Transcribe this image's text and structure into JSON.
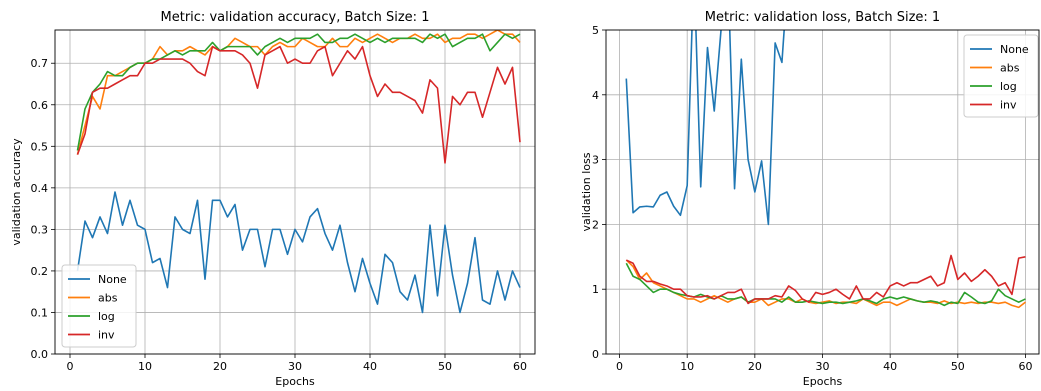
{
  "colors": {
    "None": "#1f77b4",
    "abs": "#ff7f0e",
    "log": "#2ca02c",
    "inv": "#d62728",
    "grid": "#b0b0b0"
  },
  "chart_data": [
    {
      "type": "line",
      "title": "Metric: validation accuracy, Batch Size: 1",
      "xlabel": "Epochs",
      "ylabel": "validation accuracy",
      "xlim": [
        -2,
        62
      ],
      "ylim": [
        0.0,
        0.78
      ],
      "xticks": [
        0,
        10,
        20,
        30,
        40,
        50,
        60
      ],
      "yticks": [
        0.0,
        0.1,
        0.2,
        0.3,
        0.4,
        0.5,
        0.6,
        0.7
      ],
      "ytick_format": 1,
      "grid": true,
      "legend": "bottom-left",
      "x": [
        1,
        2,
        3,
        4,
        5,
        6,
        7,
        8,
        9,
        10,
        11,
        12,
        13,
        14,
        15,
        16,
        17,
        18,
        19,
        20,
        21,
        22,
        23,
        24,
        25,
        26,
        27,
        28,
        29,
        30,
        31,
        32,
        33,
        34,
        35,
        36,
        37,
        38,
        39,
        40,
        41,
        42,
        43,
        44,
        45,
        46,
        47,
        48,
        49,
        50,
        51,
        52,
        53,
        54,
        55,
        56,
        57,
        58,
        59,
        60
      ],
      "series": [
        {
          "name": "None",
          "color_key": "None",
          "values": [
            0.2,
            0.32,
            0.28,
            0.33,
            0.29,
            0.39,
            0.31,
            0.37,
            0.31,
            0.3,
            0.22,
            0.23,
            0.16,
            0.33,
            0.3,
            0.29,
            0.37,
            0.18,
            0.37,
            0.37,
            0.33,
            0.36,
            0.25,
            0.3,
            0.3,
            0.21,
            0.3,
            0.3,
            0.24,
            0.3,
            0.27,
            0.33,
            0.35,
            0.29,
            0.25,
            0.31,
            0.22,
            0.15,
            0.23,
            0.17,
            0.12,
            0.24,
            0.22,
            0.15,
            0.13,
            0.19,
            0.1,
            0.31,
            0.14,
            0.31,
            0.19,
            0.1,
            0.17,
            0.28,
            0.13,
            0.12,
            0.2,
            0.13,
            0.2,
            0.16
          ]
        },
        {
          "name": "abs",
          "color_key": "abs",
          "values": [
            0.48,
            0.55,
            0.62,
            0.59,
            0.67,
            0.67,
            0.68,
            0.69,
            0.7,
            0.7,
            0.71,
            0.74,
            0.72,
            0.73,
            0.73,
            0.74,
            0.73,
            0.72,
            0.74,
            0.73,
            0.74,
            0.76,
            0.75,
            0.74,
            0.74,
            0.72,
            0.74,
            0.75,
            0.74,
            0.74,
            0.76,
            0.75,
            0.74,
            0.74,
            0.76,
            0.74,
            0.74,
            0.76,
            0.75,
            0.76,
            0.77,
            0.76,
            0.75,
            0.76,
            0.76,
            0.77,
            0.76,
            0.76,
            0.77,
            0.75,
            0.76,
            0.76,
            0.77,
            0.77,
            0.76,
            0.77,
            0.78,
            0.77,
            0.77,
            0.75
          ]
        },
        {
          "name": "log",
          "color_key": "log",
          "values": [
            0.49,
            0.59,
            0.63,
            0.65,
            0.68,
            0.67,
            0.67,
            0.69,
            0.7,
            0.7,
            0.71,
            0.71,
            0.72,
            0.73,
            0.72,
            0.73,
            0.73,
            0.73,
            0.75,
            0.73,
            0.74,
            0.74,
            0.74,
            0.74,
            0.72,
            0.74,
            0.75,
            0.76,
            0.75,
            0.76,
            0.76,
            0.76,
            0.77,
            0.75,
            0.75,
            0.76,
            0.76,
            0.77,
            0.76,
            0.75,
            0.76,
            0.75,
            0.76,
            0.76,
            0.76,
            0.76,
            0.75,
            0.77,
            0.76,
            0.77,
            0.74,
            0.75,
            0.76,
            0.76,
            0.77,
            0.73,
            0.75,
            0.77,
            0.76,
            0.77
          ]
        },
        {
          "name": "inv",
          "color_key": "inv",
          "values": [
            0.48,
            0.53,
            0.63,
            0.64,
            0.64,
            0.65,
            0.66,
            0.67,
            0.67,
            0.7,
            0.7,
            0.71,
            0.71,
            0.71,
            0.71,
            0.7,
            0.68,
            0.67,
            0.74,
            0.73,
            0.73,
            0.73,
            0.72,
            0.7,
            0.64,
            0.72,
            0.73,
            0.74,
            0.7,
            0.71,
            0.7,
            0.7,
            0.73,
            0.74,
            0.67,
            0.7,
            0.73,
            0.71,
            0.74,
            0.67,
            0.62,
            0.65,
            0.63,
            0.63,
            0.62,
            0.61,
            0.58,
            0.66,
            0.64,
            0.46,
            0.62,
            0.6,
            0.63,
            0.63,
            0.57,
            0.63,
            0.69,
            0.65,
            0.69,
            0.51
          ]
        }
      ]
    },
    {
      "type": "line",
      "title": "Metric: validation loss, Batch Size: 1",
      "xlabel": "Epochs",
      "ylabel": "validation loss",
      "xlim": [
        -2,
        62
      ],
      "ylim": [
        0,
        5
      ],
      "xticks": [
        0,
        10,
        20,
        30,
        40,
        50,
        60
      ],
      "yticks": [
        0,
        1,
        2,
        3,
        4,
        5
      ],
      "ytick_format": 0,
      "grid": true,
      "legend": "top-right",
      "x": [
        1,
        2,
        3,
        4,
        5,
        6,
        7,
        8,
        9,
        10,
        11,
        12,
        13,
        14,
        15,
        16,
        17,
        18,
        19,
        20,
        21,
        22,
        23,
        24,
        25,
        26,
        27,
        28,
        29,
        30,
        31,
        32,
        33,
        34,
        35,
        36,
        37,
        38,
        39,
        40,
        41,
        42,
        43,
        44,
        45,
        46,
        47,
        48,
        49,
        50,
        51,
        52,
        53,
        54,
        55,
        56,
        57,
        58,
        59,
        60
      ],
      "series": [
        {
          "name": "None",
          "color_key": "None",
          "values": [
            4.25,
            2.18,
            2.27,
            2.28,
            2.27,
            2.45,
            2.5,
            2.28,
            2.14,
            2.6,
            6.0,
            2.58,
            4.73,
            3.75,
            5.0,
            6.0,
            2.55,
            4.55,
            3.0,
            2.5,
            2.98,
            2.0,
            4.8,
            4.5,
            6.0,
            null,
            null,
            null,
            null,
            null,
            null,
            null,
            null,
            null,
            null,
            null,
            null,
            null,
            null,
            null,
            null,
            null,
            null,
            null,
            null,
            null,
            null,
            null,
            null,
            null,
            null,
            null,
            null,
            null,
            null,
            null,
            null,
            null,
            null,
            null
          ]
        },
        {
          "name": "abs",
          "color_key": "abs",
          "values": [
            1.45,
            1.35,
            1.15,
            1.25,
            1.1,
            1.05,
            1.0,
            0.95,
            0.9,
            0.85,
            0.85,
            0.8,
            0.85,
            0.9,
            0.85,
            0.8,
            0.85,
            0.88,
            0.8,
            0.8,
            0.85,
            0.75,
            0.8,
            0.85,
            0.85,
            0.8,
            0.85,
            0.8,
            0.78,
            0.8,
            0.82,
            0.78,
            0.8,
            0.8,
            0.78,
            0.85,
            0.8,
            0.75,
            0.8,
            0.8,
            0.75,
            0.8,
            0.85,
            0.82,
            0.8,
            0.8,
            0.78,
            0.82,
            0.78,
            0.8,
            0.78,
            0.8,
            0.78,
            0.8,
            0.8,
            0.78,
            0.8,
            0.75,
            0.72,
            0.8
          ]
        },
        {
          "name": "log",
          "color_key": "log",
          "values": [
            1.4,
            1.2,
            1.15,
            1.05,
            0.95,
            1.0,
            1.0,
            0.95,
            0.92,
            0.9,
            0.88,
            0.92,
            0.88,
            0.85,
            0.9,
            0.85,
            0.85,
            0.88,
            0.8,
            0.85,
            0.85,
            0.85,
            0.85,
            0.8,
            0.88,
            0.8,
            0.8,
            0.82,
            0.8,
            0.78,
            0.8,
            0.8,
            0.78,
            0.8,
            0.82,
            0.85,
            0.82,
            0.78,
            0.85,
            0.88,
            0.85,
            0.88,
            0.85,
            0.82,
            0.8,
            0.82,
            0.8,
            0.75,
            0.8,
            0.78,
            0.95,
            0.88,
            0.8,
            0.78,
            0.82,
            1.0,
            0.9,
            0.85,
            0.8,
            0.85
          ]
        },
        {
          "name": "inv",
          "color_key": "inv",
          "values": [
            1.45,
            1.4,
            1.2,
            1.12,
            1.12,
            1.08,
            1.05,
            1.0,
            1.0,
            0.9,
            0.88,
            0.88,
            0.9,
            0.85,
            0.9,
            0.95,
            0.95,
            1.0,
            0.78,
            0.85,
            0.85,
            0.85,
            0.9,
            0.88,
            1.05,
            0.98,
            0.85,
            0.8,
            0.95,
            0.92,
            0.95,
            1.0,
            0.92,
            0.85,
            1.05,
            0.85,
            0.85,
            0.95,
            0.88,
            1.05,
            1.1,
            1.05,
            1.1,
            1.1,
            1.15,
            1.2,
            1.05,
            1.1,
            1.52,
            1.15,
            1.25,
            1.12,
            1.2,
            1.3,
            1.2,
            1.05,
            1.1,
            0.92,
            1.48,
            1.5
          ]
        }
      ]
    }
  ]
}
